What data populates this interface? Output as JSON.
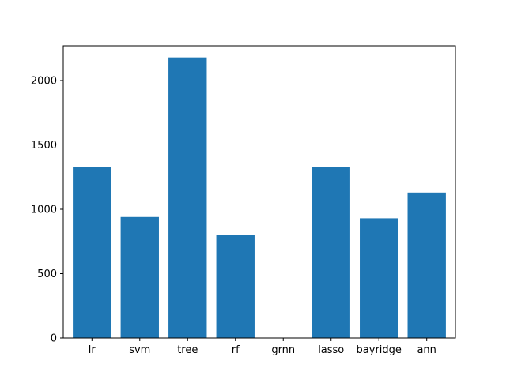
{
  "chart_data": {
    "type": "bar",
    "categories": [
      "lr",
      "svm",
      "tree",
      "rf",
      "grnn",
      "lasso",
      "bayridge",
      "ann"
    ],
    "values": [
      1330,
      940,
      2180,
      800,
      0,
      1330,
      930,
      1130
    ],
    "title": "",
    "xlabel": "",
    "ylabel": "",
    "ylim": [
      0,
      2270
    ],
    "yticks": [
      0,
      500,
      1000,
      1500,
      2000
    ],
    "grid": false,
    "bar_color": "#1f77b4"
  }
}
